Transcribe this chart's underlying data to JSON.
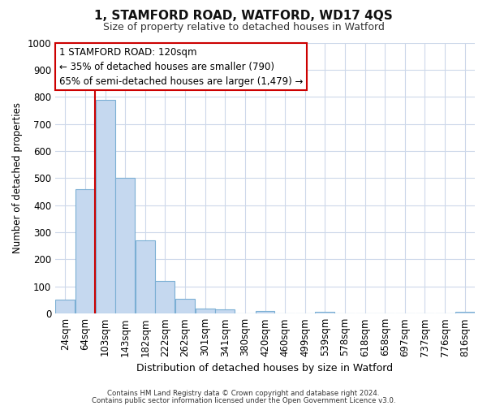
{
  "title": "1, STAMFORD ROAD, WATFORD, WD17 4QS",
  "subtitle": "Size of property relative to detached houses in Watford",
  "xlabel": "Distribution of detached houses by size in Watford",
  "ylabel": "Number of detached properties",
  "bar_labels": [
    "24sqm",
    "64sqm",
    "103sqm",
    "143sqm",
    "182sqm",
    "222sqm",
    "262sqm",
    "301sqm",
    "341sqm",
    "380sqm",
    "420sqm",
    "460sqm",
    "499sqm",
    "539sqm",
    "578sqm",
    "618sqm",
    "658sqm",
    "697sqm",
    "737sqm",
    "776sqm",
    "816sqm"
  ],
  "bar_values": [
    50,
    460,
    790,
    500,
    270,
    120,
    55,
    20,
    15,
    0,
    10,
    0,
    0,
    8,
    0,
    0,
    0,
    0,
    0,
    0,
    8
  ],
  "bar_color": "#c5d8ef",
  "bar_edge_color": "#7bafd4",
  "vline_color": "#cc0000",
  "ylim": [
    0,
    1000
  ],
  "yticks": [
    0,
    100,
    200,
    300,
    400,
    500,
    600,
    700,
    800,
    900,
    1000
  ],
  "annotation_title": "1 STAMFORD ROAD: 120sqm",
  "annotation_line1": "← 35% of detached houses are smaller (790)",
  "annotation_line2": "65% of semi-detached houses are larger (1,479) →",
  "annotation_box_color": "#cc0000",
  "footer1": "Contains HM Land Registry data © Crown copyright and database right 2024.",
  "footer2": "Contains public sector information licensed under the Open Government Licence v3.0.",
  "bg_color": "#ffffff",
  "grid_color": "#cdd8ea"
}
